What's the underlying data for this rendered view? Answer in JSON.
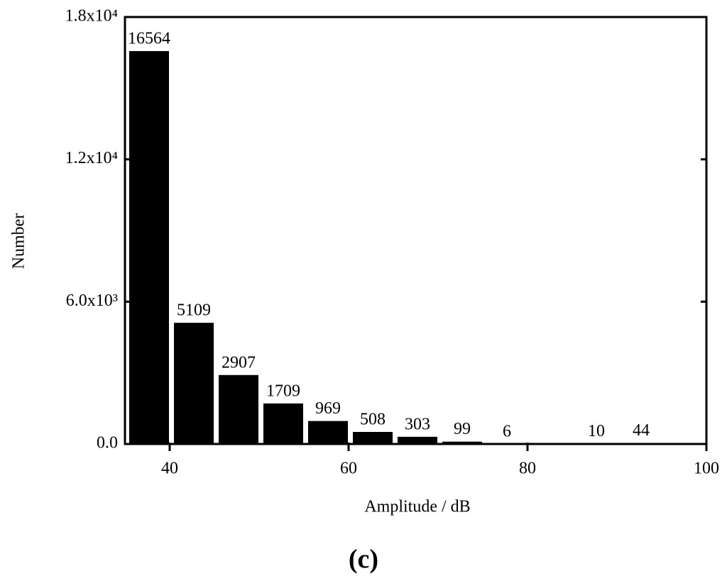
{
  "chart_data": {
    "type": "histogram",
    "title": "(c)",
    "x_label": "Amplitude / dB",
    "y_label": "Number",
    "bins": [
      35,
      40,
      45,
      50,
      55,
      60,
      65,
      70,
      75,
      80,
      85,
      90,
      95
    ],
    "counts": [
      16564,
      5109,
      2907,
      1709,
      969,
      508,
      303,
      99,
      6,
      0,
      10,
      44
    ],
    "color": "#000000",
    "xlim": [
      35,
      100
    ],
    "xticks": [
      40,
      60,
      80,
      100
    ],
    "ylim": [
      0,
      18000
    ],
    "yticks": [
      {
        "value": 0,
        "label": "0.0"
      },
      {
        "value": 6000,
        "label": "6.0x10³"
      },
      {
        "value": 12000,
        "label": "1.2x10⁴"
      },
      {
        "value": 18000,
        "label": "1.8x10⁴"
      }
    ],
    "grid": false
  }
}
